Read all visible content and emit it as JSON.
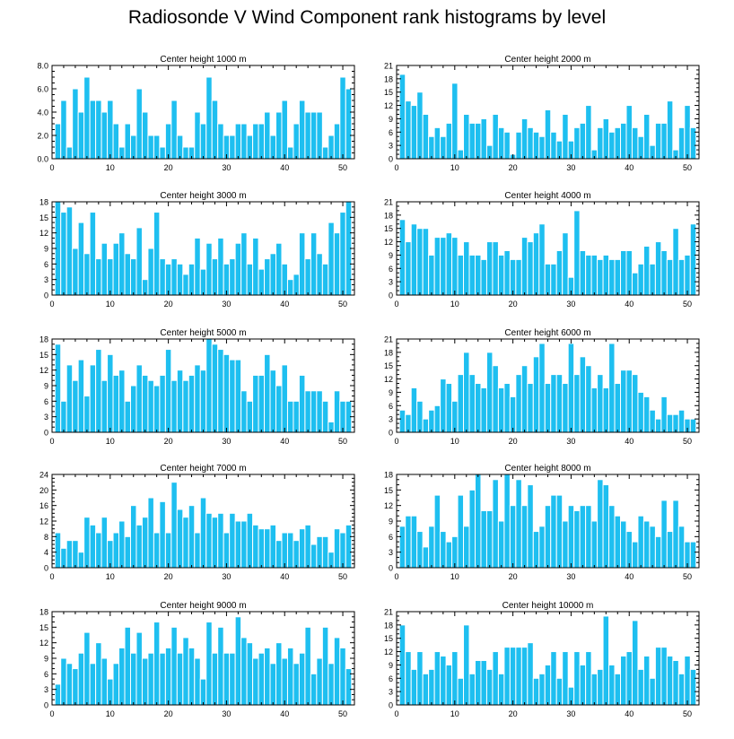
{
  "page_title": "Radiosonde V Wind Component rank histograms by level",
  "colors": {
    "bar": "#1EBFF0",
    "bar_edge": "#ffffff",
    "axis": "#000000"
  },
  "chart_data": [
    {
      "type": "bar",
      "title": "Center height 1000 m",
      "xlabel": "",
      "ylabel": "",
      "xlim": [
        0,
        52
      ],
      "ylim": [
        0,
        8
      ],
      "yticks": [
        0,
        2,
        4,
        6,
        8
      ],
      "yticklabels": [
        "0.0",
        "2.0",
        "4.0",
        "6.0",
        "8.0"
      ],
      "xticks": [
        0,
        10,
        20,
        30,
        40,
        50
      ],
      "xticklabels": [
        "0",
        "10",
        "20",
        "30",
        "40",
        "50"
      ],
      "categories": [
        1,
        2,
        3,
        4,
        5,
        6,
        7,
        8,
        9,
        10,
        11,
        12,
        13,
        14,
        15,
        16,
        17,
        18,
        19,
        20,
        21,
        22,
        23,
        24,
        25,
        26,
        27,
        28,
        29,
        30,
        31,
        32,
        33,
        34,
        35,
        36,
        37,
        38,
        39,
        40,
        41,
        42,
        43,
        44,
        45,
        46,
        47,
        48,
        49,
        50,
        51
      ],
      "values": [
        3,
        5,
        1,
        6,
        4,
        7,
        5,
        5,
        4,
        5,
        3,
        1,
        3,
        2,
        6,
        4,
        2,
        2,
        1,
        3,
        5,
        2,
        1,
        1,
        4,
        3,
        7,
        5,
        3,
        2,
        2,
        3,
        3,
        2,
        3,
        3,
        4,
        2,
        4,
        5,
        1,
        3,
        5,
        4,
        4,
        4,
        1,
        2,
        3,
        7,
        6
      ]
    },
    {
      "type": "bar",
      "title": "Center height 2000 m",
      "xlabel": "",
      "ylabel": "",
      "xlim": [
        0,
        52
      ],
      "ylim": [
        0,
        21
      ],
      "yticks": [
        0,
        3,
        6,
        9,
        12,
        15,
        18,
        21
      ],
      "yticklabels": [
        "0",
        "3",
        "6",
        "9",
        "12",
        "15",
        "18",
        "21"
      ],
      "xticks": [
        0,
        10,
        20,
        30,
        40,
        50
      ],
      "xticklabels": [
        "0",
        "10",
        "20",
        "30",
        "40",
        "50"
      ],
      "categories": [
        1,
        2,
        3,
        4,
        5,
        6,
        7,
        8,
        9,
        10,
        11,
        12,
        13,
        14,
        15,
        16,
        17,
        18,
        19,
        20,
        21,
        22,
        23,
        24,
        25,
        26,
        27,
        28,
        29,
        30,
        31,
        32,
        33,
        34,
        35,
        36,
        37,
        38,
        39,
        40,
        41,
        42,
        43,
        44,
        45,
        46,
        47,
        48,
        49,
        50,
        51
      ],
      "values": [
        19,
        13,
        12,
        15,
        10,
        5,
        7,
        5,
        8,
        17,
        2,
        10,
        8,
        8,
        9,
        3,
        10,
        7,
        6,
        1,
        6,
        9,
        7,
        6,
        5,
        11,
        6,
        4,
        10,
        4,
        7,
        8,
        12,
        2,
        7,
        9,
        6,
        7,
        8,
        12,
        7,
        5,
        10,
        3,
        8,
        8,
        13,
        2,
        7,
        12,
        7
      ]
    },
    {
      "type": "bar",
      "title": "Center height 3000 m",
      "xlabel": "",
      "ylabel": "",
      "xlim": [
        0,
        52
      ],
      "ylim": [
        0,
        18
      ],
      "yticks": [
        0,
        3,
        6,
        9,
        12,
        15,
        18
      ],
      "yticklabels": [
        "0",
        "3",
        "6",
        "9",
        "12",
        "15",
        "18"
      ],
      "xticks": [
        0,
        10,
        20,
        30,
        40,
        50
      ],
      "xticklabels": [
        "0",
        "10",
        "20",
        "30",
        "40",
        "50"
      ],
      "categories": [
        1,
        2,
        3,
        4,
        5,
        6,
        7,
        8,
        9,
        10,
        11,
        12,
        13,
        14,
        15,
        16,
        17,
        18,
        19,
        20,
        21,
        22,
        23,
        24,
        25,
        26,
        27,
        28,
        29,
        30,
        31,
        32,
        33,
        34,
        35,
        36,
        37,
        38,
        39,
        40,
        41,
        42,
        43,
        44,
        45,
        46,
        47,
        48,
        49,
        50,
        51
      ],
      "values": [
        18,
        16,
        17,
        9,
        14,
        8,
        16,
        7,
        10,
        7,
        10,
        12,
        8,
        7,
        13,
        3,
        9,
        16,
        7,
        6,
        7,
        6,
        4,
        6,
        11,
        5,
        10,
        7,
        11,
        6,
        7,
        10,
        12,
        6,
        11,
        5,
        7,
        8,
        10,
        6,
        3,
        4,
        12,
        7,
        12,
        8,
        6,
        14,
        12,
        16,
        18
      ]
    },
    {
      "type": "bar",
      "title": "Center height 4000 m",
      "xlabel": "",
      "ylabel": "",
      "xlim": [
        0,
        52
      ],
      "ylim": [
        0,
        21
      ],
      "yticks": [
        0,
        3,
        6,
        9,
        12,
        15,
        18,
        21
      ],
      "yticklabels": [
        "0",
        "3",
        "6",
        "9",
        "12",
        "15",
        "18",
        "21"
      ],
      "xticks": [
        0,
        10,
        20,
        30,
        40,
        50
      ],
      "xticklabels": [
        "0",
        "10",
        "20",
        "30",
        "40",
        "50"
      ],
      "categories": [
        1,
        2,
        3,
        4,
        5,
        6,
        7,
        8,
        9,
        10,
        11,
        12,
        13,
        14,
        15,
        16,
        17,
        18,
        19,
        20,
        21,
        22,
        23,
        24,
        25,
        26,
        27,
        28,
        29,
        30,
        31,
        32,
        33,
        34,
        35,
        36,
        37,
        38,
        39,
        40,
        41,
        42,
        43,
        44,
        45,
        46,
        47,
        48,
        49,
        50,
        51
      ],
      "values": [
        17,
        12,
        16,
        15,
        15,
        9,
        13,
        13,
        14,
        13,
        9,
        12,
        9,
        9,
        8,
        12,
        12,
        9,
        10,
        8,
        8,
        13,
        12,
        14,
        16,
        7,
        7,
        10,
        14,
        4,
        19,
        10,
        9,
        9,
        8,
        9,
        8,
        8,
        10,
        10,
        5,
        7,
        11,
        7,
        12,
        10,
        8,
        15,
        8,
        9,
        16
      ]
    },
    {
      "type": "bar",
      "title": "Center height 5000 m",
      "xlabel": "",
      "ylabel": "",
      "xlim": [
        0,
        52
      ],
      "ylim": [
        0,
        18
      ],
      "yticks": [
        0,
        3,
        6,
        9,
        12,
        15,
        18
      ],
      "yticklabels": [
        "0",
        "3",
        "6",
        "9",
        "12",
        "15",
        "18"
      ],
      "xticks": [
        0,
        10,
        20,
        30,
        40,
        50
      ],
      "xticklabels": [
        "0",
        "10",
        "20",
        "30",
        "40",
        "50"
      ],
      "categories": [
        1,
        2,
        3,
        4,
        5,
        6,
        7,
        8,
        9,
        10,
        11,
        12,
        13,
        14,
        15,
        16,
        17,
        18,
        19,
        20,
        21,
        22,
        23,
        24,
        25,
        26,
        27,
        28,
        29,
        30,
        31,
        32,
        33,
        34,
        35,
        36,
        37,
        38,
        39,
        40,
        41,
        42,
        43,
        44,
        45,
        46,
        47,
        48,
        49,
        50,
        51
      ],
      "values": [
        17,
        6,
        13,
        10,
        14,
        7,
        13,
        16,
        10,
        15,
        11,
        12,
        6,
        9,
        13,
        11,
        10,
        9,
        11,
        16,
        10,
        12,
        10,
        11,
        13,
        12,
        18,
        17,
        16,
        15,
        14,
        14,
        8,
        6,
        11,
        11,
        15,
        12,
        9,
        13,
        6,
        6,
        11,
        8,
        8,
        8,
        6,
        2,
        8,
        6,
        6
      ]
    },
    {
      "type": "bar",
      "title": "Center height 6000 m",
      "xlabel": "",
      "ylabel": "",
      "xlim": [
        0,
        52
      ],
      "ylim": [
        0,
        21
      ],
      "yticks": [
        0,
        3,
        6,
        9,
        12,
        15,
        18,
        21
      ],
      "yticklabels": [
        "0",
        "3",
        "6",
        "9",
        "12",
        "15",
        "18",
        "21"
      ],
      "xticks": [
        0,
        10,
        20,
        30,
        40,
        50
      ],
      "xticklabels": [
        "0",
        "10",
        "20",
        "30",
        "40",
        "50"
      ],
      "categories": [
        1,
        2,
        3,
        4,
        5,
        6,
        7,
        8,
        9,
        10,
        11,
        12,
        13,
        14,
        15,
        16,
        17,
        18,
        19,
        20,
        21,
        22,
        23,
        24,
        25,
        26,
        27,
        28,
        29,
        30,
        31,
        32,
        33,
        34,
        35,
        36,
        37,
        38,
        39,
        40,
        41,
        42,
        43,
        44,
        45,
        46,
        47,
        48,
        49,
        50,
        51
      ],
      "values": [
        5,
        4,
        10,
        7,
        3,
        5,
        6,
        12,
        11,
        7,
        13,
        18,
        13,
        11,
        10,
        18,
        15,
        10,
        11,
        8,
        13,
        15,
        11,
        17,
        20,
        11,
        13,
        13,
        11,
        20,
        13,
        17,
        15,
        10,
        13,
        10,
        20,
        11,
        14,
        14,
        13,
        9,
        8,
        5,
        3,
        8,
        4,
        4,
        5,
        3,
        3
      ]
    },
    {
      "type": "bar",
      "title": "Center height 7000 m",
      "xlabel": "",
      "ylabel": "",
      "xlim": [
        0,
        52
      ],
      "ylim": [
        0,
        24
      ],
      "yticks": [
        0,
        4,
        8,
        12,
        16,
        20,
        24
      ],
      "yticklabels": [
        "0",
        "4",
        "8",
        "12",
        "16",
        "20",
        "24"
      ],
      "xticks": [
        0,
        10,
        20,
        30,
        40,
        50
      ],
      "xticklabels": [
        "0",
        "10",
        "20",
        "30",
        "40",
        "50"
      ],
      "categories": [
        1,
        2,
        3,
        4,
        5,
        6,
        7,
        8,
        9,
        10,
        11,
        12,
        13,
        14,
        15,
        16,
        17,
        18,
        19,
        20,
        21,
        22,
        23,
        24,
        25,
        26,
        27,
        28,
        29,
        30,
        31,
        32,
        33,
        34,
        35,
        36,
        37,
        38,
        39,
        40,
        41,
        42,
        43,
        44,
        45,
        46,
        47,
        48,
        49,
        50,
        51
      ],
      "values": [
        9,
        5,
        7,
        7,
        4,
        13,
        11,
        9,
        13,
        7,
        9,
        12,
        8,
        16,
        11,
        13,
        18,
        9,
        17,
        9,
        22,
        15,
        13,
        16,
        9,
        18,
        14,
        13,
        14,
        9,
        14,
        12,
        12,
        14,
        11,
        10,
        10,
        11,
        7,
        9,
        9,
        7,
        10,
        11,
        6,
        8,
        8,
        4,
        10,
        9,
        11
      ]
    },
    {
      "type": "bar",
      "title": "Center height 8000 m",
      "xlabel": "",
      "ylabel": "",
      "xlim": [
        0,
        52
      ],
      "ylim": [
        0,
        18
      ],
      "yticks": [
        0,
        3,
        6,
        9,
        12,
        15,
        18
      ],
      "yticklabels": [
        "0",
        "3",
        "6",
        "9",
        "12",
        "15",
        "18"
      ],
      "xticks": [
        0,
        10,
        20,
        30,
        40,
        50
      ],
      "xticklabels": [
        "0",
        "10",
        "20",
        "30",
        "40",
        "50"
      ],
      "categories": [
        1,
        2,
        3,
        4,
        5,
        6,
        7,
        8,
        9,
        10,
        11,
        12,
        13,
        14,
        15,
        16,
        17,
        18,
        19,
        20,
        21,
        22,
        23,
        24,
        25,
        26,
        27,
        28,
        29,
        30,
        31,
        32,
        33,
        34,
        35,
        36,
        37,
        38,
        39,
        40,
        41,
        42,
        43,
        44,
        45,
        46,
        47,
        48,
        49,
        50,
        51
      ],
      "values": [
        8,
        10,
        10,
        7,
        4,
        8,
        14,
        7,
        5,
        6,
        14,
        8,
        15,
        18,
        11,
        11,
        17,
        9,
        18,
        12,
        17,
        12,
        16,
        7,
        8,
        12,
        14,
        14,
        9,
        12,
        11,
        12,
        12,
        9,
        17,
        16,
        12,
        10,
        9,
        7,
        5,
        10,
        9,
        8,
        6,
        13,
        7,
        13,
        8,
        5,
        5
      ]
    },
    {
      "type": "bar",
      "title": "Center height 9000 m",
      "xlabel": "",
      "ylabel": "",
      "xlim": [
        0,
        52
      ],
      "ylim": [
        0,
        18
      ],
      "yticks": [
        0,
        3,
        6,
        9,
        12,
        15,
        18
      ],
      "yticklabels": [
        "0",
        "3",
        "6",
        "9",
        "12",
        "15",
        "18"
      ],
      "xticks": [
        0,
        10,
        20,
        30,
        40,
        50
      ],
      "xticklabels": [
        "0",
        "10",
        "20",
        "30",
        "40",
        "50"
      ],
      "categories": [
        1,
        2,
        3,
        4,
        5,
        6,
        7,
        8,
        9,
        10,
        11,
        12,
        13,
        14,
        15,
        16,
        17,
        18,
        19,
        20,
        21,
        22,
        23,
        24,
        25,
        26,
        27,
        28,
        29,
        30,
        31,
        32,
        33,
        34,
        35,
        36,
        37,
        38,
        39,
        40,
        41,
        42,
        43,
        44,
        45,
        46,
        47,
        48,
        49,
        50,
        51
      ],
      "values": [
        4,
        9,
        8,
        7,
        10,
        14,
        8,
        12,
        9,
        5,
        8,
        11,
        15,
        10,
        14,
        9,
        10,
        16,
        10,
        11,
        15,
        10,
        13,
        11,
        9,
        5,
        16,
        10,
        15,
        10,
        10,
        17,
        13,
        12,
        9,
        10,
        11,
        8,
        12,
        9,
        11,
        8,
        10,
        15,
        6,
        9,
        15,
        8,
        13,
        11,
        7
      ]
    },
    {
      "type": "bar",
      "title": "Center height 10000 m",
      "xlabel": "",
      "ylabel": "",
      "xlim": [
        0,
        52
      ],
      "ylim": [
        0,
        21
      ],
      "yticks": [
        0,
        3,
        6,
        9,
        12,
        15,
        18,
        21
      ],
      "yticklabels": [
        "0",
        "3",
        "6",
        "9",
        "12",
        "15",
        "18",
        "21"
      ],
      "xticks": [
        0,
        10,
        20,
        30,
        40,
        50
      ],
      "xticklabels": [
        "0",
        "10",
        "20",
        "30",
        "40",
        "50"
      ],
      "categories": [
        1,
        2,
        3,
        4,
        5,
        6,
        7,
        8,
        9,
        10,
        11,
        12,
        13,
        14,
        15,
        16,
        17,
        18,
        19,
        20,
        21,
        22,
        23,
        24,
        25,
        26,
        27,
        28,
        29,
        30,
        31,
        32,
        33,
        34,
        35,
        36,
        37,
        38,
        39,
        40,
        41,
        42,
        43,
        44,
        45,
        46,
        47,
        48,
        49,
        50,
        51
      ],
      "values": [
        18,
        12,
        8,
        12,
        7,
        8,
        12,
        11,
        9,
        12,
        6,
        18,
        7,
        10,
        10,
        8,
        12,
        7,
        13,
        13,
        13,
        13,
        14,
        6,
        7,
        9,
        12,
        6,
        12,
        4,
        12,
        9,
        12,
        7,
        8,
        20,
        9,
        7,
        11,
        12,
        19,
        8,
        11,
        6,
        13,
        13,
        11,
        10,
        7,
        11,
        8
      ]
    }
  ]
}
